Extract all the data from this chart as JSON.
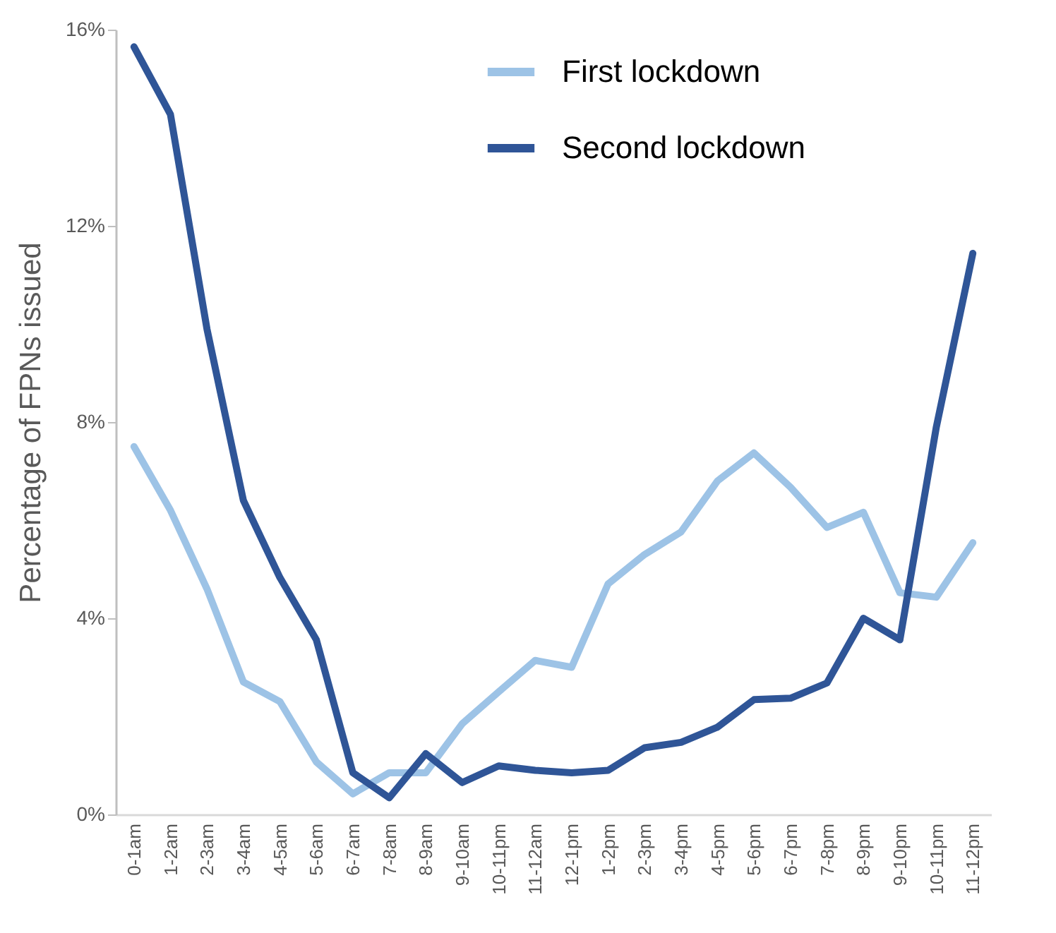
{
  "chart_data": {
    "type": "line",
    "ylabel": "Percentage of FPNs issued",
    "categories": [
      "0-1am",
      "1-2am",
      "2-3am",
      "3-4am",
      "4-5am",
      "5-6am",
      "6-7am",
      "7-8am",
      "8-9am",
      "9-10am",
      "10-11pm",
      "11-12am",
      "12-1pm",
      "1-2pm",
      "2-3pm",
      "3-4pm",
      "4-5pm",
      "5-6pm",
      "6-7pm",
      "7-8pm",
      "8-9pm",
      "9-10pm",
      "10-11pm",
      "11-12pm"
    ],
    "series": [
      {
        "name": "First lockdown",
        "color": "#9dc3e6",
        "values": [
          7.5,
          6.2,
          4.6,
          2.7,
          2.3,
          1.07,
          0.42,
          0.85,
          0.85,
          1.85,
          2.5,
          3.14,
          3.0,
          4.7,
          5.3,
          5.76,
          6.8,
          7.37,
          6.67,
          5.85,
          6.16,
          4.52,
          4.43,
          5.54
        ]
      },
      {
        "name": "Second lockdown",
        "color": "#2f5597",
        "values": [
          15.65,
          14.27,
          9.9,
          6.4,
          4.83,
          3.56,
          0.85,
          0.34,
          1.24,
          0.65,
          0.99,
          0.9,
          0.85,
          0.9,
          1.36,
          1.47,
          1.78,
          2.34,
          2.37,
          2.68,
          4.0,
          3.56,
          7.9,
          11.44
        ]
      }
    ],
    "ylim": [
      0,
      16
    ],
    "yticks": [
      {
        "value": 0,
        "label": "0%"
      },
      {
        "value": 4,
        "label": "4%"
      },
      {
        "value": 8,
        "label": "8%"
      },
      {
        "value": 12,
        "label": "12%"
      },
      {
        "value": 16,
        "label": "16%"
      }
    ],
    "grid": false,
    "legend": "top",
    "marker": "none",
    "line_style": "solid"
  }
}
